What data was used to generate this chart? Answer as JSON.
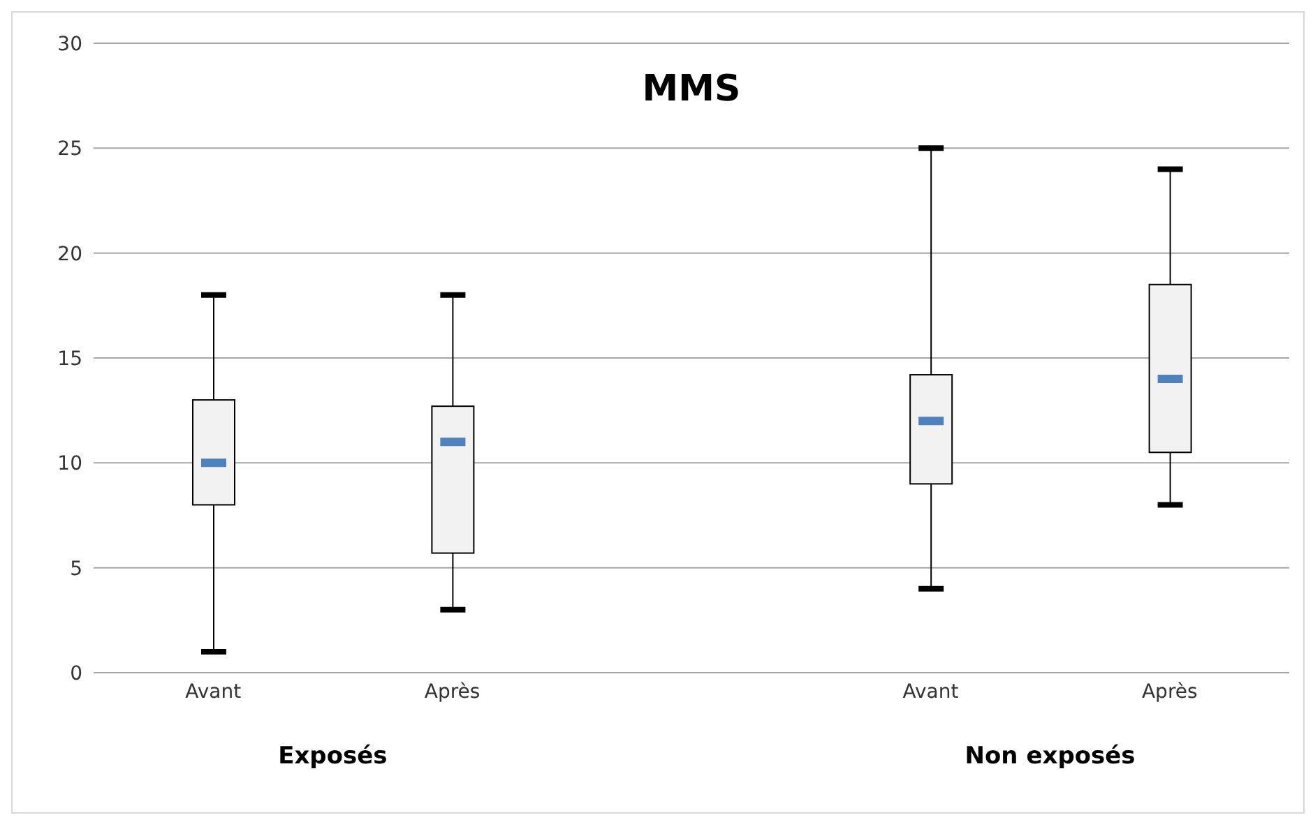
{
  "chart_data": {
    "type": "box",
    "title": "MMS",
    "categories": [
      "Avant",
      "Après",
      null,
      "Avant",
      "Après"
    ],
    "color": "#f2f2f2",
    "boxes": [
      {
        "low": 1,
        "q1": 8,
        "median": 10,
        "q3": 13,
        "high": 18
      },
      {
        "low": 3,
        "q1": 5.7,
        "median": 11,
        "q3": 12.7,
        "high": 18
      },
      null,
      {
        "low": 4,
        "q1": 9,
        "median": 12,
        "q3": 14.2,
        "high": 25
      },
      {
        "low": 8,
        "q1": 10.5,
        "median": 14,
        "q3": 18.5,
        "high": 24
      }
    ],
    "ylim": [
      0,
      30
    ],
    "yticks": [
      0,
      5,
      10,
      15,
      20,
      25,
      30
    ],
    "grid": "y",
    "annotations": [
      "Exposés",
      "Non exposés"
    ]
  }
}
